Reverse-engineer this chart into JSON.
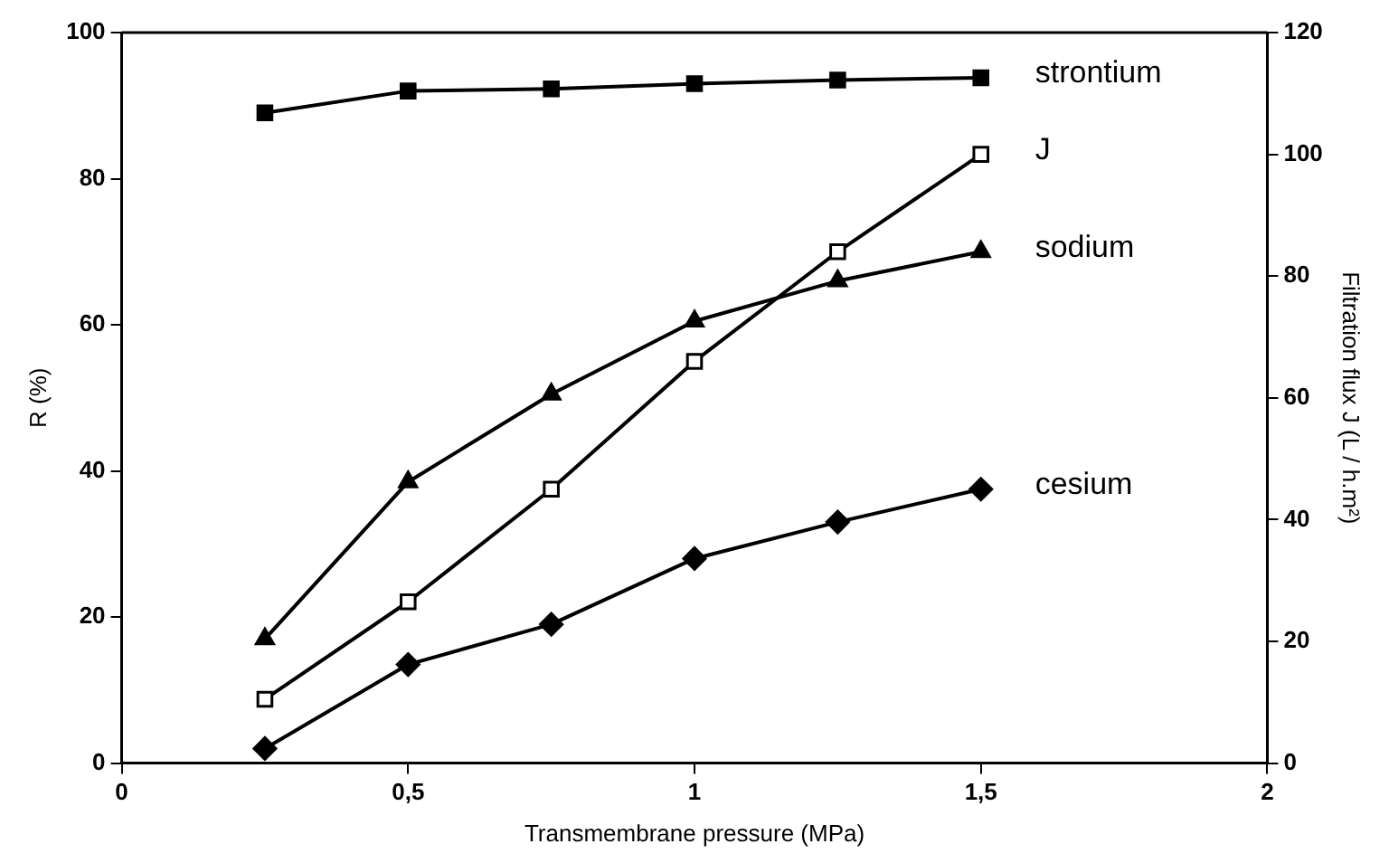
{
  "chart_data": {
    "type": "line",
    "xlabel": "Transmembrane pressure (MPa)",
    "ylabel": "R (%)",
    "y2label": "Filtration flux J (L / h.m²)",
    "xlim": [
      0,
      2
    ],
    "xticks": [
      0,
      {
        "value": 0.5,
        "label": "0,5"
      },
      1,
      {
        "value": 1.5,
        "label": "1,5"
      },
      2
    ],
    "ylim": [
      0,
      100
    ],
    "yticks": [
      0,
      20,
      40,
      60,
      80,
      100
    ],
    "y2lim": [
      0,
      120
    ],
    "y2ticks": [
      0,
      20,
      40,
      60,
      80,
      100,
      120
    ],
    "grid": false,
    "legend": false,
    "line_style": "solid",
    "series": [
      {
        "name": "strontium",
        "color": "#000000",
        "marker": "square",
        "x": [
          0.25,
          0.5,
          0.75,
          1,
          1.25,
          1.5
        ],
        "values": [
          89,
          92,
          92.3,
          93,
          93.5,
          93.8
        ]
      },
      {
        "name": "J",
        "color": "#000000",
        "marker": "square",
        "axis": "y2",
        "x": [
          0.25,
          0.5,
          0.75,
          1,
          1.25,
          1.5
        ],
        "values": [
          10.5,
          26.5,
          45,
          66,
          84,
          100
        ]
      },
      {
        "name": "sodium",
        "color": "#000000",
        "marker": "triangle",
        "x": [
          0.25,
          0.5,
          0.75,
          1,
          1.25,
          1.5
        ],
        "values": [
          17,
          38.5,
          50.5,
          60.5,
          66,
          70
        ]
      },
      {
        "name": "cesium",
        "color": "#000000",
        "marker": "diamond",
        "x": [
          0.25,
          0.5,
          0.75,
          1,
          1.25,
          1.5
        ],
        "values": [
          2,
          13.5,
          19,
          28,
          33,
          37.5
        ]
      }
    ]
  }
}
